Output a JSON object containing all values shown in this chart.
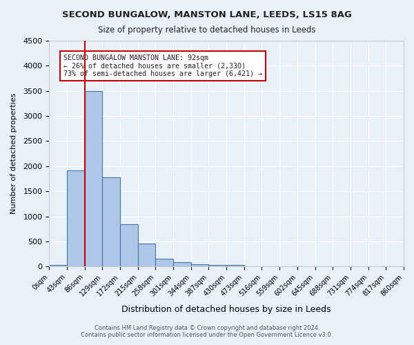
{
  "title1": "SECOND BUNGALOW, MANSTON LANE, LEEDS, LS15 8AG",
  "title2": "Size of property relative to detached houses in Leeds",
  "xlabel": "Distribution of detached houses by size in Leeds",
  "ylabel": "Number of detached properties",
  "bin_labels": [
    "0sqm",
    "43sqm",
    "86sqm",
    "129sqm",
    "172sqm",
    "215sqm",
    "258sqm",
    "301sqm",
    "344sqm",
    "387sqm",
    "430sqm",
    "473sqm",
    "516sqm",
    "559sqm",
    "602sqm",
    "645sqm",
    "688sqm",
    "731sqm",
    "774sqm",
    "817sqm",
    "860sqm"
  ],
  "bar_values": [
    30,
    1920,
    3500,
    1780,
    840,
    460,
    155,
    90,
    50,
    35,
    28,
    0,
    0,
    0,
    0,
    0,
    0,
    0,
    0,
    0
  ],
  "bar_color": "#aec6e8",
  "bar_edge_color": "#4477aa",
  "red_line_x": 2,
  "ylim": [
    0,
    4500
  ],
  "yticks": [
    0,
    500,
    1000,
    1500,
    2000,
    2500,
    3000,
    3500,
    4000,
    4500
  ],
  "annotation_line1": "SECOND BUNGALOW MANSTON LANE: 92sqm",
  "annotation_line2": "← 26% of detached houses are smaller (2,330)",
  "annotation_line3": "73% of semi-detached houses are larger (6,421) →",
  "annotation_box_color": "#ffffff",
  "annotation_border_color": "#cc0000",
  "property_line_color": "#cc0000",
  "background_color": "#e8f0f8",
  "grid_color": "#ffffff",
  "footer1": "Contains HM Land Registry data © Crown copyright and database right 2024.",
  "footer2": "Contains public sector information licensed under the Open Government Licence v3.0."
}
